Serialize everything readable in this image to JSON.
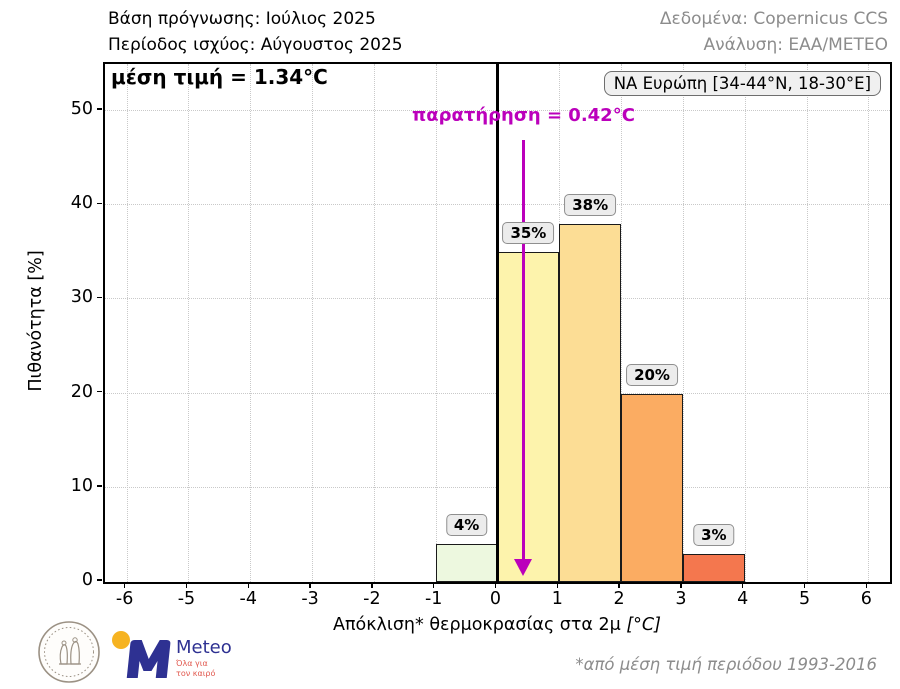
{
  "header": {
    "left_line1": "Βάση πρόγνωσης: Ιούλιος 2025",
    "left_line2": "Περίοδος ισχύος: Αύγουστος 2025",
    "right_line1": "Δεδομένα: Copernicus CCS",
    "right_line2": "Ανάλυση: ΕΑΑ/ΜΕΤΕΟ"
  },
  "chart_data": {
    "type": "bar",
    "title": "μέση τιμή = 1.34°C",
    "region_label": "ΝΑ Ευρώπη [34-44°N, 18-30°E]",
    "xlabel": "Απόκλιση* θερμοκρασίας στα 2μ",
    "xlabel_unit": "[°C]",
    "ylabel": "Πιθανότητα [%]",
    "xlim": [
      -6.35,
      6.35
    ],
    "ylim": [
      0,
      55
    ],
    "xticks": [
      -6,
      -5,
      -4,
      -3,
      -2,
      -1,
      0,
      1,
      2,
      3,
      4,
      5,
      6
    ],
    "yticks": [
      0,
      10,
      20,
      30,
      40,
      50
    ],
    "grid": true,
    "zero_line_x": 0,
    "observation": {
      "label": "παρατήρηση = 0.42°C",
      "x": 0.42,
      "color": "#bb00bb"
    },
    "bars": [
      {
        "x_start": -1,
        "x_end": 0,
        "value": 4,
        "label": "4%",
        "color": "#edf8df"
      },
      {
        "x_start": 0,
        "x_end": 1,
        "value": 35,
        "label": "35%",
        "color": "#fdf3ac"
      },
      {
        "x_start": 1,
        "x_end": 2,
        "value": 38,
        "label": "38%",
        "color": "#fcdd95"
      },
      {
        "x_start": 2,
        "x_end": 3,
        "value": 20,
        "label": "20%",
        "color": "#fbac62"
      },
      {
        "x_start": 3,
        "x_end": 4,
        "value": 3,
        "label": "3%",
        "color": "#f4774e"
      }
    ]
  },
  "footer": {
    "note": "*από μέση τιμή περιόδου 1993-2016",
    "logos": {
      "noa_seal": "national-observatory-of-athens-seal",
      "meteo": {
        "name": "Meteo",
        "tagline_line1": "Όλα για",
        "tagline_line2": "τον καιρό"
      },
      "colors": {
        "meteo_blue": "#2e3192",
        "meteo_yellow": "#f6b321",
        "meteo_red": "#e1584e",
        "seal_gray": "#9b9184"
      }
    }
  }
}
